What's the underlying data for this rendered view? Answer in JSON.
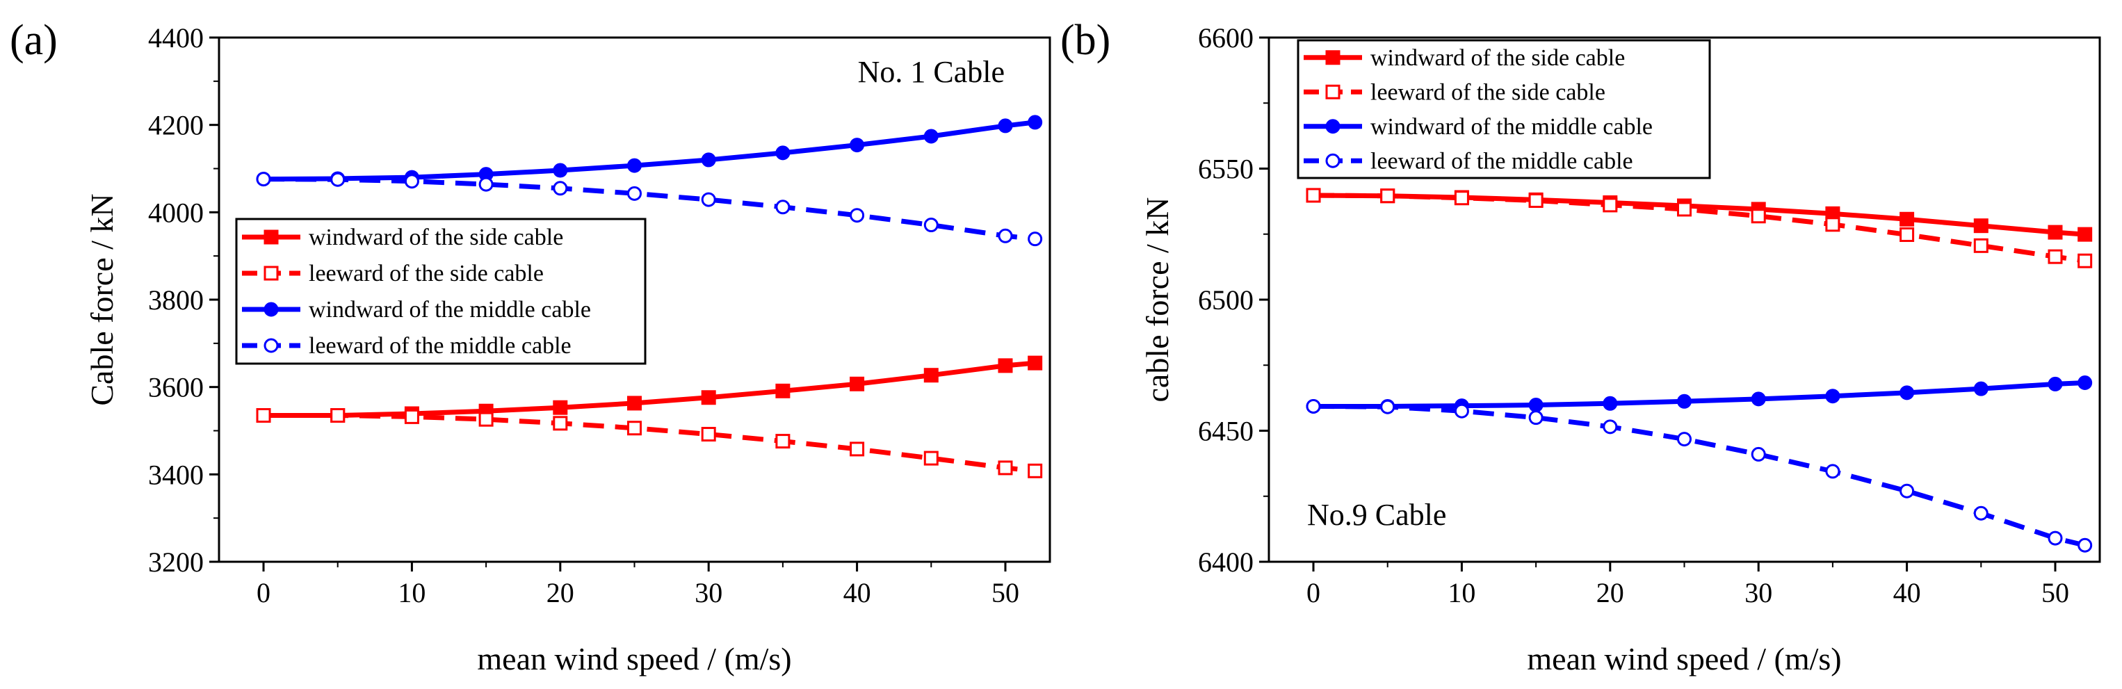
{
  "figure": {
    "panels": [
      {
        "label": "(a)",
        "inset_text": "No. 1 Cable"
      },
      {
        "label": "(b)",
        "inset_text": "No.9 Cable"
      }
    ]
  },
  "chart_data": [
    {
      "type": "line",
      "panel": "(a)",
      "xlabel": "mean wind speed / (m/s)",
      "ylabel": "Cable force / kN",
      "xlim": [
        -3,
        53
      ],
      "ylim": [
        3200,
        4400
      ],
      "xticks": [
        0,
        10,
        20,
        30,
        40,
        50
      ],
      "yticks": [
        3200,
        3400,
        3600,
        3800,
        4000,
        4200,
        4400
      ],
      "legend_position": "center-left",
      "x": [
        0,
        5,
        10,
        15,
        20,
        25,
        30,
        35,
        40,
        45,
        50,
        52
      ],
      "series": [
        {
          "name": "windward  of the side cable",
          "color": "#ff0000",
          "line": "solid",
          "marker": "square-filled",
          "values": [
            3535,
            3535,
            3539,
            3545,
            3553,
            3563,
            3576,
            3591,
            3607,
            3627,
            3649,
            3655
          ]
        },
        {
          "name": "leeward of the side cable",
          "color": "#ff0000",
          "line": "dashed",
          "marker": "square-open",
          "values": [
            3535,
            3535,
            3532,
            3526,
            3517,
            3506,
            3492,
            3476,
            3458,
            3437,
            3415,
            3408
          ]
        },
        {
          "name": "windward  of the middle cable",
          "color": "#0000ff",
          "line": "solid",
          "marker": "circle-filled",
          "values": [
            4076,
            4077,
            4080,
            4087,
            4096,
            4107,
            4120,
            4136,
            4154,
            4174,
            4198,
            4206
          ]
        },
        {
          "name": "leeward of the middle cable",
          "color": "#0000ff",
          "line": "dashed",
          "marker": "circle-open",
          "values": [
            4076,
            4075,
            4071,
            4064,
            4055,
            4043,
            4029,
            4012,
            3993,
            3971,
            3946,
            3939
          ]
        }
      ]
    },
    {
      "type": "line",
      "panel": "(b)",
      "xlabel": "mean wind speed / (m/s)",
      "ylabel": "cable force / kN",
      "xlim": [
        -3,
        53
      ],
      "ylim": [
        6400,
        6600
      ],
      "xticks": [
        0,
        10,
        20,
        30,
        40,
        50
      ],
      "yticks": [
        6400,
        6450,
        6500,
        6550,
        6600
      ],
      "legend_position": "top-left",
      "x": [
        0,
        5,
        10,
        15,
        20,
        25,
        30,
        35,
        40,
        45,
        50,
        52
      ],
      "series": [
        {
          "name": "windward  of the side cable",
          "color": "#ff0000",
          "line": "solid",
          "marker": "square-filled",
          "values": [
            6539.8,
            6539.6,
            6539.0,
            6538.1,
            6537.0,
            6535.8,
            6534.5,
            6532.8,
            6530.7,
            6528.2,
            6525.7,
            6524.9
          ]
        },
        {
          "name": "leeward of the side cable",
          "color": "#ff0000",
          "line": "dashed",
          "marker": "square-open",
          "values": [
            6539.8,
            6539.6,
            6538.8,
            6537.8,
            6536.1,
            6534.5,
            6531.9,
            6528.7,
            6524.8,
            6520.6,
            6516.4,
            6514.8
          ]
        },
        {
          "name": "windward  of the middle cable",
          "color": "#0000ff",
          "line": "solid",
          "marker": "circle-filled",
          "values": [
            6459.3,
            6459.3,
            6459.5,
            6459.8,
            6460.4,
            6461.2,
            6462.1,
            6463.2,
            6464.5,
            6466.0,
            6467.8,
            6468.3
          ]
        },
        {
          "name": "leeward of the middle cable",
          "color": "#0000ff",
          "line": "dashed",
          "marker": "circle-open",
          "values": [
            6459.3,
            6459.1,
            6457.5,
            6455.0,
            6451.5,
            6446.8,
            6441.0,
            6434.5,
            6427.0,
            6418.5,
            6409.0,
            6406.3
          ]
        }
      ]
    }
  ]
}
